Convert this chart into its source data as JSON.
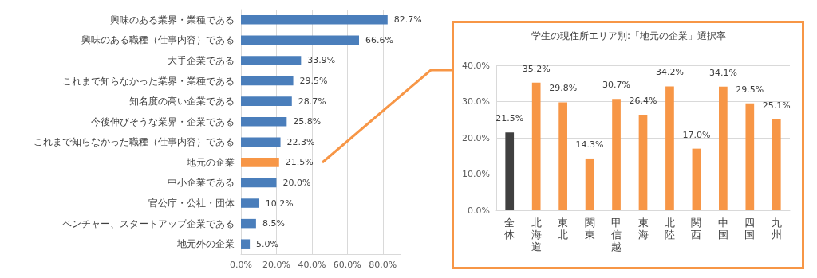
{
  "chart_data": [
    {
      "type": "bar",
      "orientation": "horizontal",
      "categories": [
        "興味のある業界・業種である",
        "興味のある職種（仕事内容）である",
        "大手企業である",
        "これまで知らなかった業界・業種である",
        "知名度の高い企業である",
        "今後伸びそうな業界・企業である",
        "これまで知らなかった職種（仕事内容）である",
        "地元の企業",
        "中小企業である",
        "官公庁・公社・団体",
        "ベンチャー、スタートアップ企業である",
        "地元外の企業"
      ],
      "values": [
        82.7,
        66.6,
        33.9,
        29.5,
        28.7,
        25.8,
        22.3,
        21.5,
        20.0,
        10.2,
        8.5,
        5.0
      ],
      "colors": [
        "#4a7ebb",
        "#4a7ebb",
        "#4a7ebb",
        "#4a7ebb",
        "#4a7ebb",
        "#4a7ebb",
        "#4a7ebb",
        "#f79646",
        "#4a7ebb",
        "#4a7ebb",
        "#4a7ebb",
        "#4a7ebb"
      ],
      "value_labels": [
        "82.7%",
        "66.6%",
        "33.9%",
        "29.5%",
        "28.7%",
        "25.8%",
        "22.3%",
        "21.5%",
        "20.0%",
        "10.2%",
        "8.5%",
        "5.0%"
      ],
      "xlim": [
        0,
        90
      ],
      "xticks": [
        {
          "value": 0,
          "label": "0.0%"
        },
        {
          "value": 20,
          "label": "20.0%"
        },
        {
          "value": 40,
          "label": "40.0%"
        },
        {
          "value": 60,
          "label": "60.0%"
        },
        {
          "value": 80,
          "label": "80.0%"
        }
      ],
      "grid": "x"
    },
    {
      "type": "bar",
      "title": "学生の現住所エリア別:「地元の企業」選択率",
      "categories": [
        "全体",
        "北海道",
        "東北",
        "関東",
        "甲信越",
        "東海",
        "北陸",
        "関西",
        "中国",
        "四国",
        "九州"
      ],
      "values": [
        21.5,
        35.2,
        29.8,
        14.3,
        30.7,
        26.4,
        34.2,
        17.0,
        34.1,
        29.5,
        25.1
      ],
      "colors": [
        "#404040",
        "#f79646",
        "#f79646",
        "#f79646",
        "#f79646",
        "#f79646",
        "#f79646",
        "#f79646",
        "#f79646",
        "#f79646",
        "#f79646"
      ],
      "value_labels": [
        "21.5%",
        "35.2%",
        "29.8%",
        "14.3%",
        "30.7%",
        "26.4%",
        "34.2%",
        "17.0%",
        "34.1%",
        "29.5%",
        "25.1%"
      ],
      "ylim": [
        0,
        40
      ],
      "yticks": [
        {
          "value": 0,
          "label": "0.0%"
        },
        {
          "value": 10,
          "label": "10.0%"
        },
        {
          "value": 20,
          "label": "20.0%"
        },
        {
          "value": 30,
          "label": "30.0%"
        },
        {
          "value": 40,
          "label": "40.0%"
        }
      ],
      "grid": "y"
    }
  ]
}
